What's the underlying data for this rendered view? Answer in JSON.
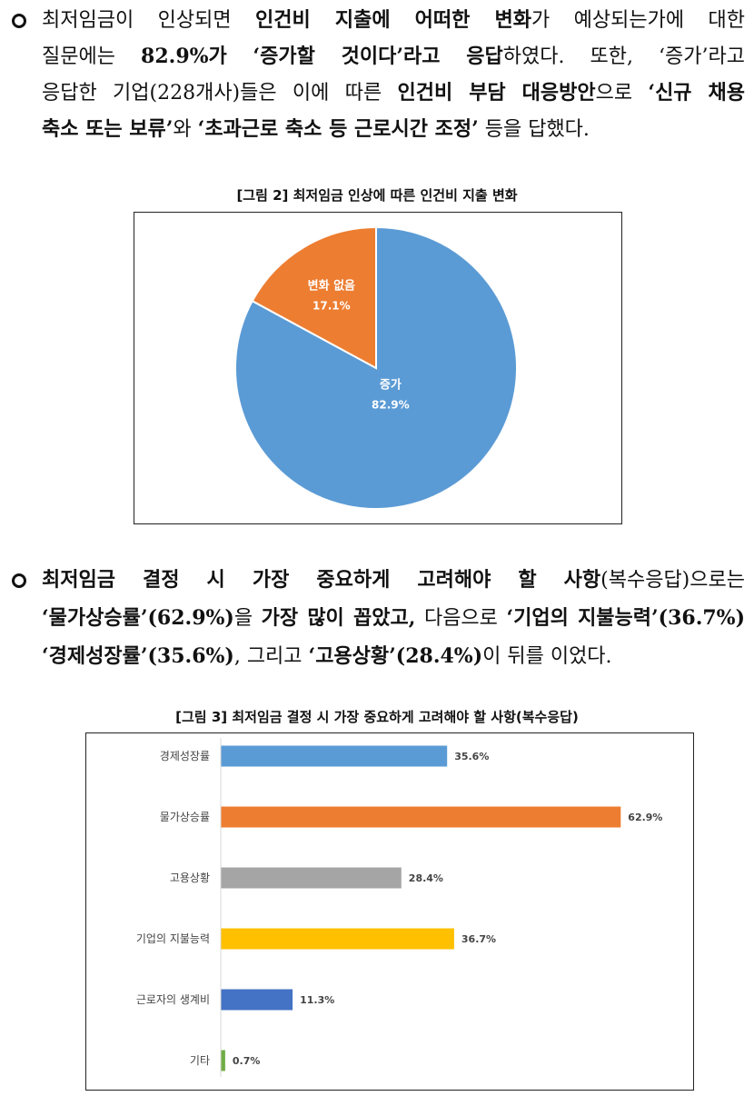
{
  "para1": {
    "lines": [
      [
        {
          "t": "최저임금이 인상되면 ",
          "b": false
        },
        {
          "t": "인건비 지출에 어떠한 변화",
          "b": true
        },
        {
          "t": "가 예상되는가에 대한",
          "b": false
        }
      ],
      [
        {
          "t": "질문에는 ",
          "b": false
        },
        {
          "t": "82.9%가 ‘증가할 것이다’라고 응답",
          "b": true
        },
        {
          "t": "하였다. 또한, ‘증가’라고",
          "b": false
        }
      ],
      [
        {
          "t": "응답한 기업(228개사)들은 이에 따른 ",
          "b": false
        },
        {
          "t": "인건비 부담 대응방안",
          "b": true
        },
        {
          "t": "으로 ",
          "b": false
        },
        {
          "t": "‘신규 채용",
          "b": true
        }
      ],
      [
        {
          "t": "축소 또는 보류’",
          "b": true
        },
        {
          "t": "와 ",
          "b": false
        },
        {
          "t": "‘초과근로 축소 등 근로시간 조정’",
          "b": true
        },
        {
          "t": " 등을 답했다.",
          "b": false
        }
      ]
    ]
  },
  "para2": {
    "lines": [
      [
        {
          "t": "최저임금 결정 시 가장 중요하게 고려해야 할 사항",
          "b": true
        },
        {
          "t": "(복수응답)으로는",
          "b": false
        }
      ],
      [
        {
          "t": "‘물가상승률’(62.9%)",
          "b": true
        },
        {
          "t": "을 ",
          "b": false
        },
        {
          "t": "가장 많이 꼽았고,",
          "b": true
        },
        {
          "t": " 다음으로 ",
          "b": false
        },
        {
          "t": "‘기업의 지불능력’(36.7%)",
          "b": true
        },
        {
          "t": "과",
          "b": false
        }
      ],
      [
        {
          "t": "‘경제성장률’(35.6%)",
          "b": true
        },
        {
          "t": ", 그리고 ",
          "b": false
        },
        {
          "t": "‘고용상황’(28.4%)",
          "b": true
        },
        {
          "t": "이 뒤를 이었다.",
          "b": false
        }
      ]
    ]
  },
  "figure2": {
    "caption": "[그림 2] 최저임금 인상에 따른 인건비 지출 변화"
  },
  "figure3": {
    "caption": "[그림 3] 최저임금 결정 시 가장 중요하게 고려해야 할 사항(복수응답)"
  },
  "chart_data": [
    {
      "type": "pie",
      "title": "[그림 2] 최저임금 인상에 따른 인건비 지출 변화",
      "slices": [
        {
          "label": "증가",
          "value": 82.9,
          "value_label": "82.9%",
          "color": "#5b9bd5"
        },
        {
          "label": "변화 없음",
          "value": 17.1,
          "value_label": "17.1%",
          "color": "#ed7d31"
        }
      ]
    },
    {
      "type": "bar",
      "orientation": "horizontal",
      "title": "[그림 3] 최저임금 결정 시 가장 중요하게 고려해야 할 사항(복수응답)",
      "categories": [
        "경제성장률",
        "물가상승률",
        "고용상황",
        "기업의 지불능력",
        "근로자의 생계비",
        "기타"
      ],
      "values": [
        35.6,
        62.9,
        28.4,
        36.7,
        11.3,
        0.7
      ],
      "value_labels": [
        "35.6%",
        "62.9%",
        "28.4%",
        "36.7%",
        "11.3%",
        "0.7%"
      ],
      "colors": [
        "#5b9bd5",
        "#ed7d31",
        "#a5a5a5",
        "#ffc000",
        "#4472c4",
        "#70ad47"
      ],
      "xlim": [
        0,
        70
      ],
      "grid": false
    }
  ]
}
